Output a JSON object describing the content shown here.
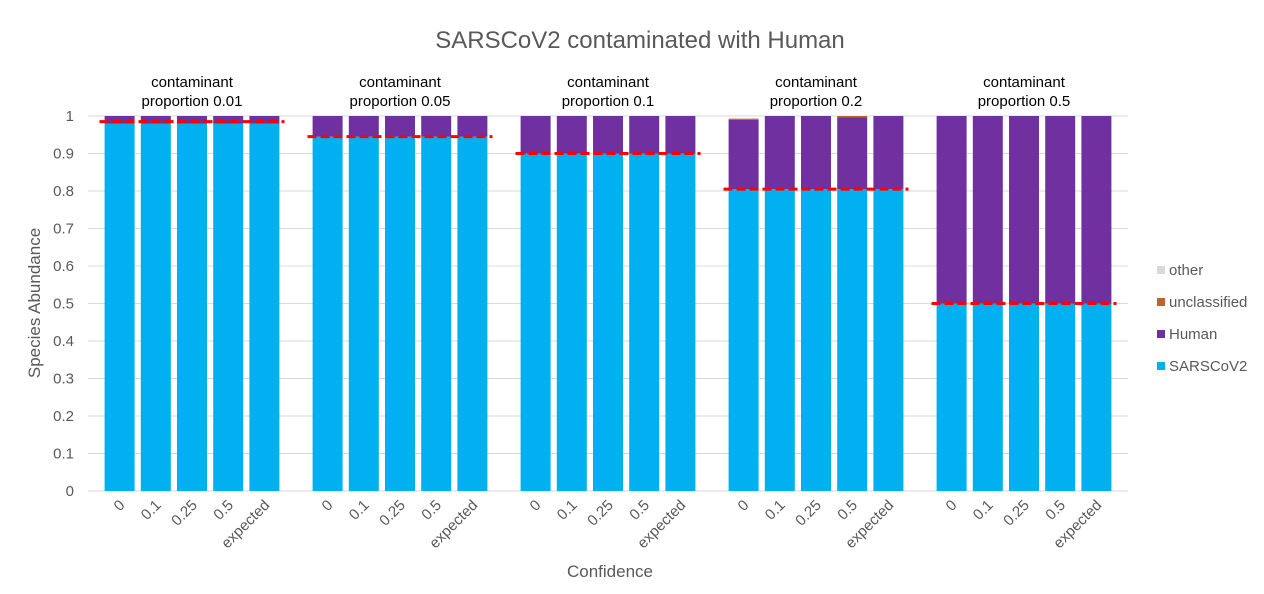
{
  "chart_data": {
    "type": "bar",
    "stacked": true,
    "title": "SARSCoV2 contaminated with Human",
    "xlabel": "Confidence",
    "ylabel": "Species Abundance",
    "ylim": [
      0,
      1
    ],
    "yticks": [
      "0",
      "0.1",
      "0.2",
      "0.3",
      "0.4",
      "0.5",
      "0.6",
      "0.7",
      "0.8",
      "0.9",
      "1"
    ],
    "grid": true,
    "legend_position": "right",
    "categories": [
      "0",
      "0.1",
      "0.25",
      "0.5",
      "expected"
    ],
    "series": [
      {
        "name": "SARSCoV2",
        "color": "#00b0f0"
      },
      {
        "name": "Human",
        "color": "#7030a0"
      },
      {
        "name": "unclassified",
        "color": "#c0622f"
      },
      {
        "name": "other",
        "color": "#d9d9d9"
      }
    ],
    "legend_order": [
      "other",
      "unclassified",
      "Human",
      "SARSCoV2"
    ],
    "expected_line_color": "#ff0000",
    "panels": [
      {
        "title_line1": "contaminant",
        "title_line2": "proportion 0.01",
        "expected": 0.985,
        "bars": [
          {
            "SARSCoV2": 0.98,
            "Human": 0.02,
            "unclassified": 0,
            "other": 0
          },
          {
            "SARSCoV2": 0.98,
            "Human": 0.02,
            "unclassified": 0,
            "other": 0
          },
          {
            "SARSCoV2": 0.98,
            "Human": 0.02,
            "unclassified": 0,
            "other": 0
          },
          {
            "SARSCoV2": 0.98,
            "Human": 0.02,
            "unclassified": 0,
            "other": 0
          },
          {
            "SARSCoV2": 0.98,
            "Human": 0.02,
            "unclassified": 0,
            "other": 0
          }
        ]
      },
      {
        "title_line1": "contaminant",
        "title_line2": "proportion 0.05",
        "expected": 0.945,
        "bars": [
          {
            "SARSCoV2": 0.945,
            "Human": 0.055,
            "unclassified": 0,
            "other": 0
          },
          {
            "SARSCoV2": 0.945,
            "Human": 0.055,
            "unclassified": 0,
            "other": 0
          },
          {
            "SARSCoV2": 0.945,
            "Human": 0.055,
            "unclassified": 0,
            "other": 0
          },
          {
            "SARSCoV2": 0.945,
            "Human": 0.055,
            "unclassified": 0,
            "other": 0
          },
          {
            "SARSCoV2": 0.945,
            "Human": 0.055,
            "unclassified": 0,
            "other": 0
          }
        ]
      },
      {
        "title_line1": "contaminant",
        "title_line2": "proportion 0.1",
        "expected": 0.9,
        "bars": [
          {
            "SARSCoV2": 0.9,
            "Human": 0.1,
            "unclassified": 0,
            "other": 0
          },
          {
            "SARSCoV2": 0.9,
            "Human": 0.1,
            "unclassified": 0,
            "other": 0
          },
          {
            "SARSCoV2": 0.9,
            "Human": 0.1,
            "unclassified": 0,
            "other": 0
          },
          {
            "SARSCoV2": 0.9,
            "Human": 0.1,
            "unclassified": 0,
            "other": 0
          },
          {
            "SARSCoV2": 0.9,
            "Human": 0.1,
            "unclassified": 0,
            "other": 0
          }
        ]
      },
      {
        "title_line1": "contaminant",
        "title_line2": "proportion 0.2",
        "expected": 0.805,
        "bars": [
          {
            "SARSCoV2": 0.805,
            "Human": 0.185,
            "unclassified": 0.003,
            "other": 0
          },
          {
            "SARSCoV2": 0.805,
            "Human": 0.195,
            "unclassified": 0,
            "other": 0
          },
          {
            "SARSCoV2": 0.805,
            "Human": 0.195,
            "unclassified": 0,
            "other": 0
          },
          {
            "SARSCoV2": 0.805,
            "Human": 0.192,
            "unclassified": 0.003,
            "other": 0
          },
          {
            "SARSCoV2": 0.805,
            "Human": 0.195,
            "unclassified": 0,
            "other": 0
          }
        ]
      },
      {
        "title_line1": "contaminant",
        "title_line2": "proportion 0.5",
        "expected": 0.5,
        "bars": [
          {
            "SARSCoV2": 0.5,
            "Human": 0.5,
            "unclassified": 0,
            "other": 0
          },
          {
            "SARSCoV2": 0.5,
            "Human": 0.5,
            "unclassified": 0,
            "other": 0
          },
          {
            "SARSCoV2": 0.5,
            "Human": 0.5,
            "unclassified": 0,
            "other": 0
          },
          {
            "SARSCoV2": 0.5,
            "Human": 0.5,
            "unclassified": 0,
            "other": 0
          },
          {
            "SARSCoV2": 0.5,
            "Human": 0.5,
            "unclassified": 0,
            "other": 0
          }
        ]
      }
    ]
  }
}
